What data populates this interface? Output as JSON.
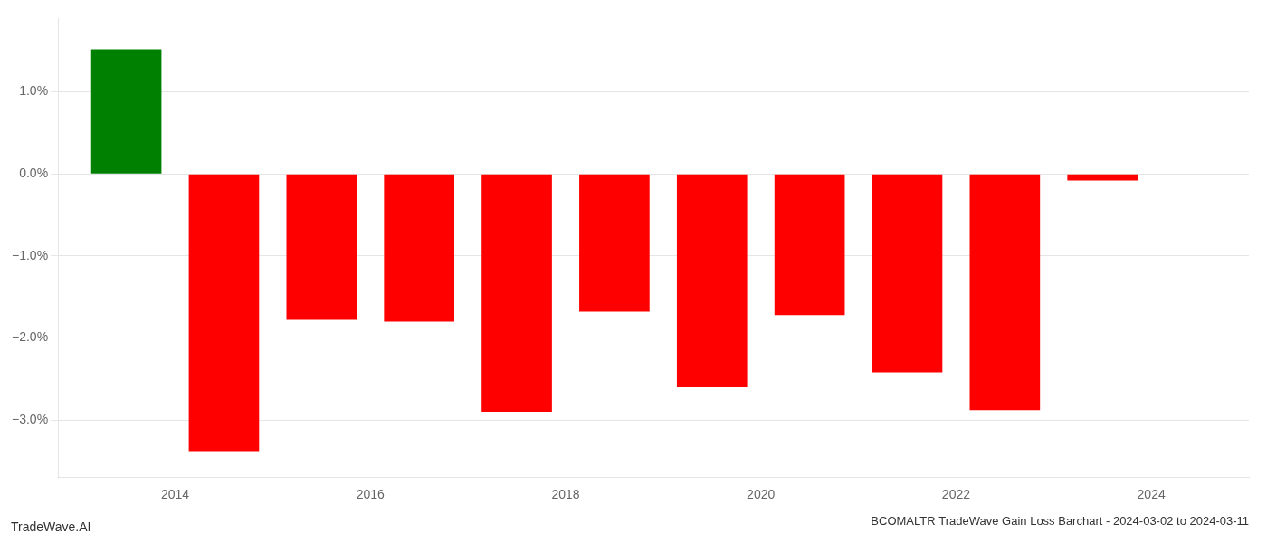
{
  "chart_data": {
    "type": "bar",
    "title": "BCOMALTR TradeWave Gain Loss Barchart - 2024-03-02 to 2024-03-11",
    "annotations": [
      "TradeWave.AI"
    ],
    "x": [
      2013.5,
      2014.5,
      2015.5,
      2016.5,
      2017.5,
      2018.5,
      2019.5,
      2020.5,
      2021.5,
      2022.5,
      2023.5
    ],
    "values": [
      1.52,
      -3.38,
      -1.78,
      -1.8,
      -2.9,
      -1.68,
      -2.6,
      -1.72,
      -2.42,
      -2.88,
      -0.08
    ],
    "colors": [
      "#008000",
      "#ff0000",
      "#ff0000",
      "#ff0000",
      "#ff0000",
      "#ff0000",
      "#ff0000",
      "#ff0000",
      "#ff0000",
      "#ff0000",
      "#ff0000"
    ],
    "xlim": [
      2012.8,
      2025.0
    ],
    "xticks": [
      2014,
      2016,
      2018,
      2020,
      2022,
      2024
    ],
    "ylim": [
      -3.7,
      1.9
    ],
    "yticks": [
      {
        "value": -3.0,
        "label": "−3.0%"
      },
      {
        "value": -2.0,
        "label": "−2.0%"
      },
      {
        "value": -1.0,
        "label": "−1.0%"
      },
      {
        "value": 0.0,
        "label": "0.0%"
      },
      {
        "value": 1.0,
        "label": "1.0%"
      }
    ],
    "grid": "y"
  }
}
